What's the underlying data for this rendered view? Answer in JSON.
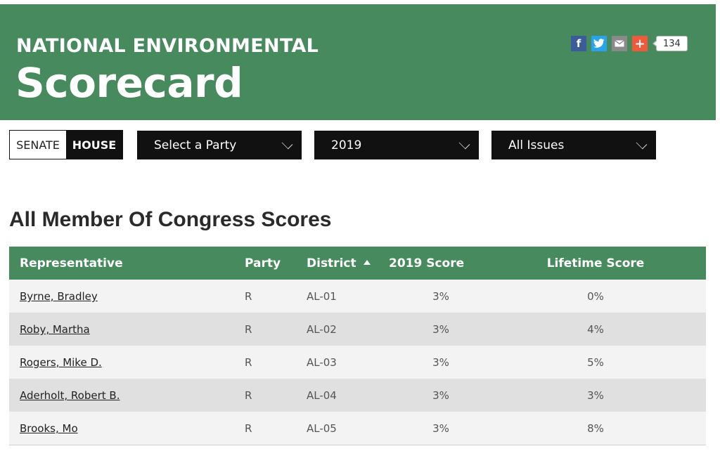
{
  "header": {
    "title_line1": "NATIONAL ENVIRONMENTAL",
    "title_line2": "Scorecard",
    "share": {
      "icons": [
        "facebook-icon",
        "twitter-icon",
        "email-icon",
        "plus-icon"
      ],
      "count": "134"
    }
  },
  "filters": {
    "chamber": {
      "senate_label": "SENATE",
      "house_label": "HOUSE",
      "selected": "HOUSE"
    },
    "party_select": "Select a Party",
    "year_select": "2019",
    "issues_select": "All Issues"
  },
  "section_title": "All Member Of Congress Scores",
  "table": {
    "columns": [
      "Representative",
      "Party",
      "District",
      "2019 Score",
      "Lifetime Score"
    ],
    "sorted_column": "District",
    "rows": [
      {
        "name": "Byrne, Bradley",
        "party": "R",
        "district": "AL-01",
        "score": "3%",
        "lifetime": "0%"
      },
      {
        "name": "Roby, Martha",
        "party": "R",
        "district": "AL-02",
        "score": "3%",
        "lifetime": "4%"
      },
      {
        "name": "Rogers, Mike D.",
        "party": "R",
        "district": "AL-03",
        "score": "3%",
        "lifetime": "5%"
      },
      {
        "name": "Aderholt, Robert B.",
        "party": "R",
        "district": "AL-04",
        "score": "3%",
        "lifetime": "3%"
      },
      {
        "name": "Brooks, Mo",
        "party": "R",
        "district": "AL-05",
        "score": "3%",
        "lifetime": "8%"
      }
    ]
  },
  "colors": {
    "brand_green": "#468a5e",
    "dark": "#111111",
    "row_light": "#f3f3f3",
    "row_dark": "#e0e0e0"
  }
}
